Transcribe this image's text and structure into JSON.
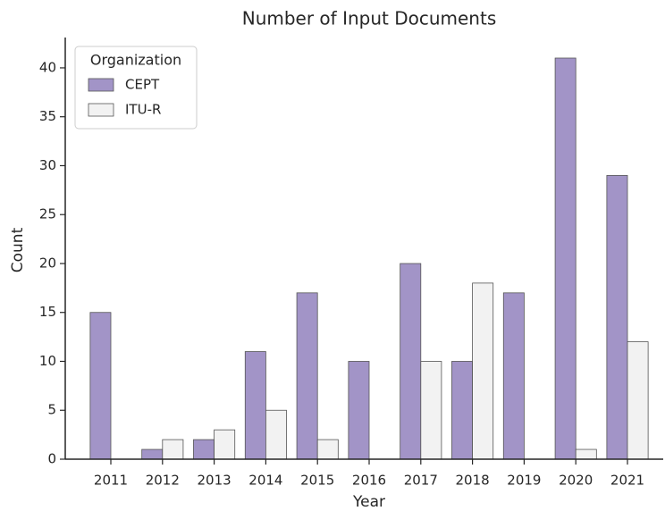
{
  "chart_data": {
    "type": "bar",
    "title": "Number of Input Documents",
    "xlabel": "Year",
    "ylabel": "Count",
    "categories": [
      "2011",
      "2012",
      "2013",
      "2014",
      "2015",
      "2016",
      "2017",
      "2018",
      "2019",
      "2020",
      "2021"
    ],
    "series": [
      {
        "name": "CEPT",
        "color": "#a294c7",
        "values": [
          15,
          1,
          2,
          11,
          17,
          10,
          20,
          10,
          17,
          41,
          29
        ]
      },
      {
        "name": "ITU-R",
        "color": "#f2f2f2",
        "values": [
          0,
          2,
          3,
          5,
          2,
          0,
          10,
          18,
          0,
          1,
          12
        ]
      }
    ],
    "legend_title": "Organization",
    "legend": "upper left",
    "ylim": [
      0,
      43.1
    ],
    "yticks": [
      0,
      5,
      10,
      15,
      20,
      25,
      30,
      35,
      40
    ],
    "grid": false
  }
}
